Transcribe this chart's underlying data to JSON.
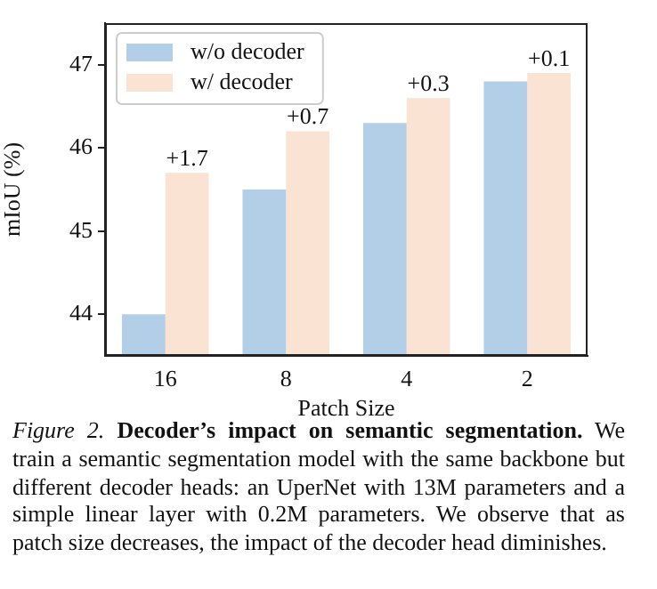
{
  "chart_data": {
    "type": "bar",
    "xlabel": "Patch Size",
    "ylabel": "mIoU (%)",
    "categories": [
      "16",
      "8",
      "4",
      "2"
    ],
    "series": [
      {
        "name": "w/o decoder",
        "color": "#b3cfe8",
        "values": [
          44.0,
          45.5,
          46.3,
          46.8
        ]
      },
      {
        "name": "w/ decoder",
        "color": "#fbe3d3",
        "values": [
          45.7,
          46.2,
          46.6,
          46.9
        ]
      }
    ],
    "ylim": [
      43.5,
      47.5
    ],
    "yticks": [
      44,
      45,
      46,
      47
    ],
    "grid": false,
    "legend": "top left",
    "annotations": [
      {
        "text": "+1.7",
        "x": "16",
        "y": 45.7
      },
      {
        "text": "+0.7",
        "x": "8",
        "y": 46.2
      },
      {
        "text": "+0.3",
        "x": "4",
        "y": 46.6
      },
      {
        "text": "+0.1",
        "x": "2",
        "y": 46.9
      },
      "Figure 2.",
      "Decoder’s impact on semantic segmentation.",
      "We train a semantic segmentation model with the same backbone but different decoder heads: an UperNet with 13M parameters and a simple linear layer with 0.2M parameters. We observe that as patch size decreases, the impact of the decoder head diminishes."
    ]
  }
}
